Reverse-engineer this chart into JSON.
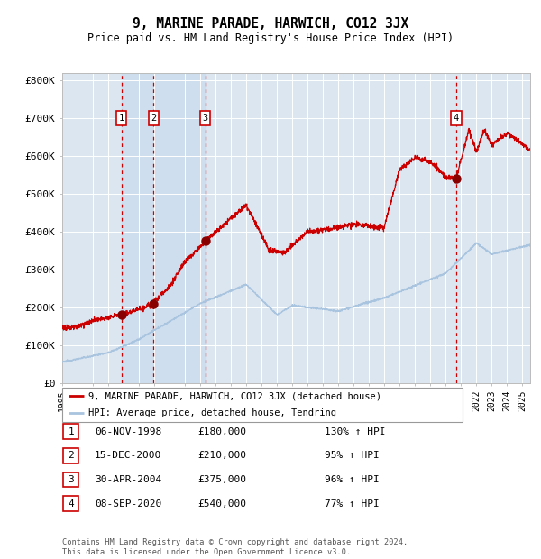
{
  "title": "9, MARINE PARADE, HARWICH, CO12 3JX",
  "subtitle": "Price paid vs. HM Land Registry's House Price Index (HPI)",
  "ylim": [
    0,
    820000
  ],
  "yticks": [
    0,
    100000,
    200000,
    300000,
    400000,
    500000,
    600000,
    700000,
    800000
  ],
  "ytick_labels": [
    "£0",
    "£100K",
    "£200K",
    "£300K",
    "£400K",
    "£500K",
    "£600K",
    "£700K",
    "£800K"
  ],
  "background_color": "#ffffff",
  "plot_bg_color": "#dce6f1",
  "grid_color": "#ffffff",
  "red_line_color": "#cc0000",
  "blue_line_color": "#a8c4df",
  "sale_dot_color": "#880000",
  "dashed_line_color": "#cc0000",
  "purchases": [
    {
      "label": "1",
      "date_num": 1998.85,
      "price": 180000,
      "date_str": "06-NOV-1998",
      "pct": "130%"
    },
    {
      "label": "2",
      "date_num": 2000.96,
      "price": 210000,
      "date_str": "15-DEC-2000",
      "pct": "95%"
    },
    {
      "label": "3",
      "date_num": 2004.33,
      "price": 375000,
      "date_str": "30-APR-2004",
      "pct": "96%"
    },
    {
      "label": "4",
      "date_num": 2020.68,
      "price": 540000,
      "date_str": "08-SEP-2020",
      "pct": "77%"
    }
  ],
  "legend_line1": "9, MARINE PARADE, HARWICH, CO12 3JX (detached house)",
  "legend_line2": "HPI: Average price, detached house, Tendring",
  "footer": "Contains HM Land Registry data © Crown copyright and database right 2024.\nThis data is licensed under the Open Government Licence v3.0.",
  "table_rows": [
    [
      "1",
      "06-NOV-1998",
      "£180,000",
      "130% ↑ HPI"
    ],
    [
      "2",
      "15-DEC-2000",
      "£210,000",
      "95% ↑ HPI"
    ],
    [
      "3",
      "30-APR-2004",
      "£375,000",
      "96% ↑ HPI"
    ],
    [
      "4",
      "08-SEP-2020",
      "£540,000",
      "77% ↑ HPI"
    ]
  ]
}
